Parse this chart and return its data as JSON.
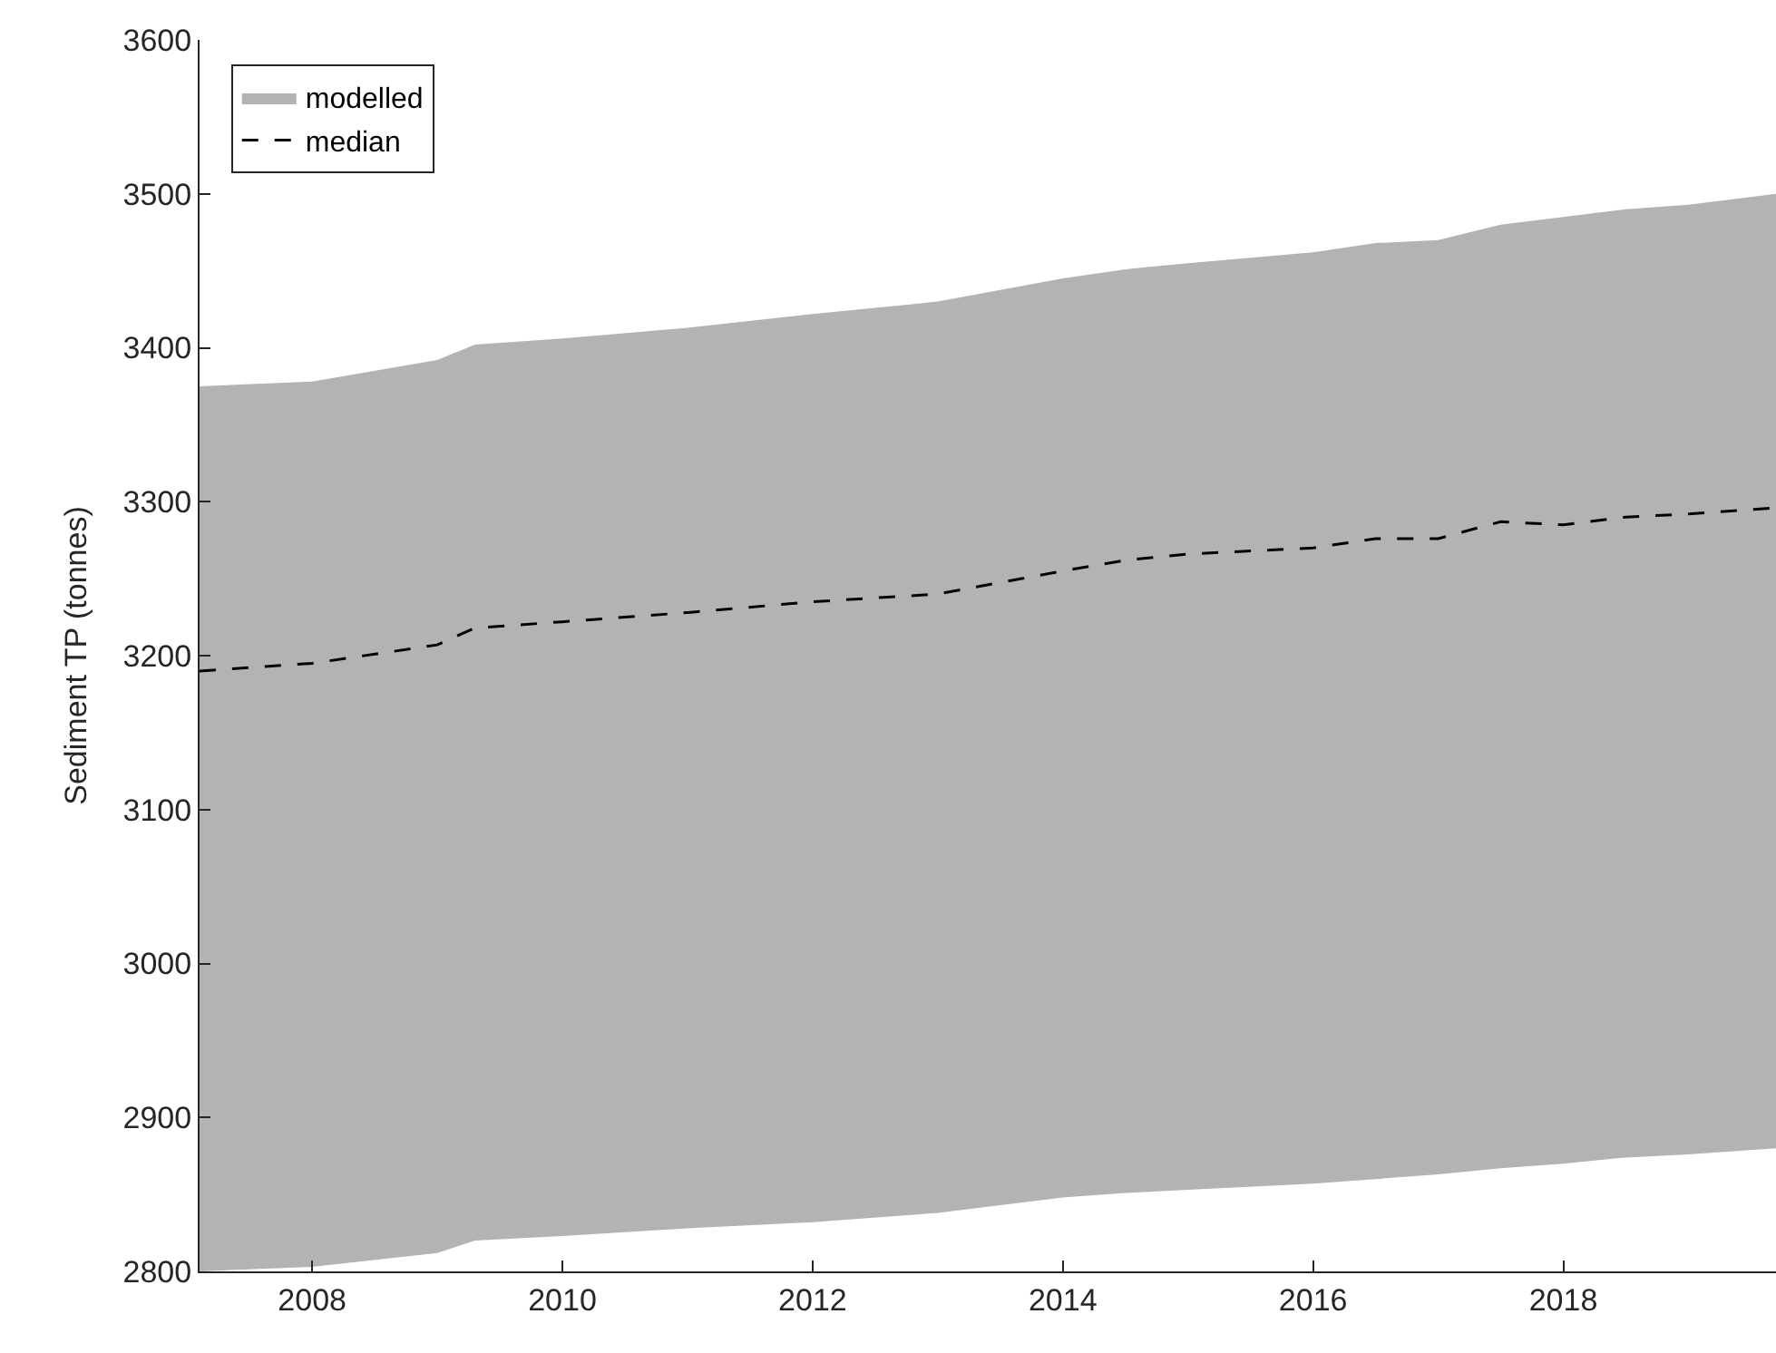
{
  "chart_data": {
    "type": "line",
    "ylabel": "Sediment TP (tonnes)",
    "xlim": [
      2007.1,
      2019.7
    ],
    "xticks": [
      2008,
      2010,
      2012,
      2014,
      2016,
      2018
    ],
    "ylim": [
      2800,
      3600
    ],
    "yticks": [
      2800,
      2900,
      3000,
      3100,
      3200,
      3300,
      3400,
      3500,
      3600
    ],
    "legend": "top left",
    "series": [
      {
        "name": "modelled",
        "color": "#b3b3b3",
        "x": [
          2007.1,
          2008,
          2009,
          2009.3,
          2010,
          2011,
          2012,
          2013,
          2014,
          2014.5,
          2015,
          2016,
          2016.5,
          2017,
          2017.5,
          2018,
          2018.5,
          2019,
          2019.7
        ],
        "values": [
          null,
          null,
          null,
          null,
          null,
          null,
          null,
          null,
          null,
          null,
          null,
          null,
          null,
          null,
          null,
          null,
          null,
          null,
          null
        ],
        "lower": [
          2800,
          2803,
          2812,
          2820,
          2823,
          2828,
          2832,
          2838,
          2848,
          2851,
          2853,
          2857,
          2860,
          2863,
          2867,
          2870,
          2874,
          2876,
          2880
        ],
        "upper": [
          3375,
          3378,
          3392,
          3402,
          3406,
          3413,
          3422,
          3430,
          3445,
          3451,
          3455,
          3462,
          3468,
          3470,
          3480,
          3485,
          3490,
          3493,
          3500
        ]
      },
      {
        "name": "median",
        "type": "line",
        "line_style": "dashed",
        "color": "#000000",
        "x": [
          2007.1,
          2008,
          2009,
          2009.3,
          2010,
          2011,
          2012,
          2013,
          2014,
          2014.5,
          2015,
          2016,
          2016.5,
          2017,
          2017.5,
          2018,
          2018.5,
          2019,
          2019.7
        ],
        "values": [
          3190,
          3195,
          3207,
          3218,
          3222,
          3228,
          3235,
          3240,
          3255,
          3262,
          3266,
          3270,
          3276,
          3276,
          3287,
          3285,
          3290,
          3292,
          3296
        ]
      }
    ]
  }
}
